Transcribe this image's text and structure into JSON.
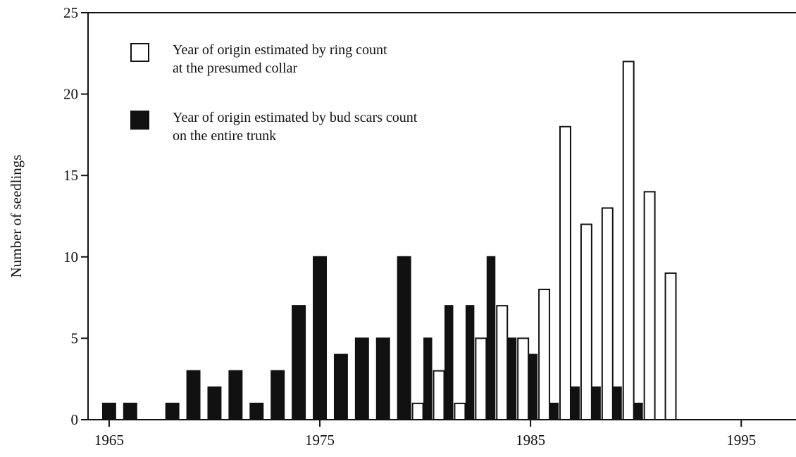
{
  "chart_data": {
    "type": "bar",
    "y_label": "Number of seedlings",
    "x": [
      1965,
      1966,
      1967,
      1968,
      1969,
      1970,
      1971,
      1972,
      1973,
      1974,
      1975,
      1976,
      1977,
      1978,
      1979,
      1980,
      1981,
      1982,
      1983,
      1984,
      1985,
      1986,
      1987,
      1988,
      1989,
      1990,
      1991,
      1992
    ],
    "series": [
      {
        "name": "Year of origin estimated by ring count\nat the presumed collar",
        "color": "#ffffff",
        "values": [
          null,
          null,
          null,
          null,
          null,
          null,
          null,
          null,
          null,
          null,
          null,
          null,
          null,
          null,
          null,
          1,
          3,
          1,
          5,
          7,
          5,
          8,
          18,
          12,
          13,
          22,
          14,
          9
        ]
      },
      {
        "name": "Year of origin estimated by bud scars count\non the entire trunk",
        "color": "#111111",
        "values": [
          1,
          1,
          null,
          1,
          3,
          2,
          3,
          1,
          3,
          7,
          10,
          4,
          5,
          5,
          10,
          5,
          7,
          7,
          10,
          5,
          4,
          1,
          2,
          2,
          2,
          1,
          null,
          null
        ]
      }
    ],
    "xlim": [
      1964,
      1997.6
    ],
    "xticks": [
      1965,
      1975,
      1985,
      1995
    ],
    "ylim": [
      0,
      25
    ],
    "yticks": [
      0,
      5,
      10,
      15,
      20,
      25
    ],
    "legend": "upper left",
    "grid": false
  }
}
